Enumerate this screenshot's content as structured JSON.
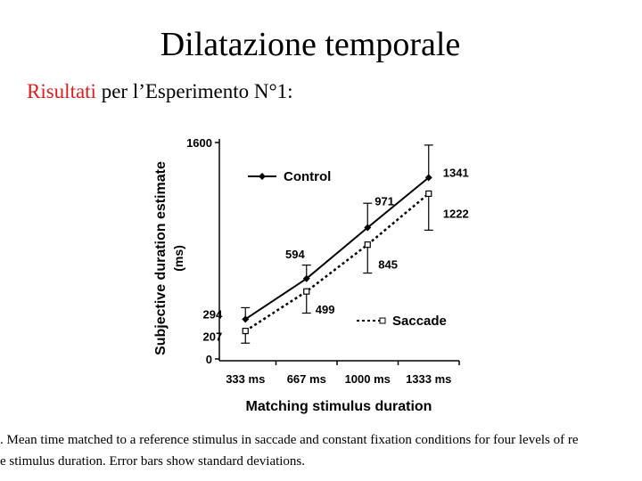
{
  "title": "Dilatazione temporale",
  "subtitle": {
    "highlight": "Risultati",
    "rest": "per l’Esperimento N°1:"
  },
  "caption": [
    ". Mean time matched to a reference stimulus in saccade and constant fixation conditions for four levels of re",
    "e stimulus duration. Error bars show standard deviations."
  ],
  "chart_data": {
    "type": "line",
    "x_label": "Matching stimulus duration",
    "y_label": "Subjective duration estimate",
    "y_label_unit": "(ms)",
    "categories": [
      "333 ms",
      "667 ms",
      "1000 ms",
      "1333 ms"
    ],
    "series": [
      {
        "name": "Control",
        "color": "#000000",
        "values": [
          294,
          594,
          971,
          1341
        ],
        "errors": [
          85,
          100,
          180,
          240
        ]
      },
      {
        "name": "Saccade",
        "color": "#000000",
        "values": [
          207,
          499,
          845,
          1222
        ],
        "errors": [
          90,
          160,
          210,
          270
        ]
      }
    ],
    "ylim": [
      0,
      1600
    ],
    "yticks": [
      0,
      1600
    ]
  }
}
